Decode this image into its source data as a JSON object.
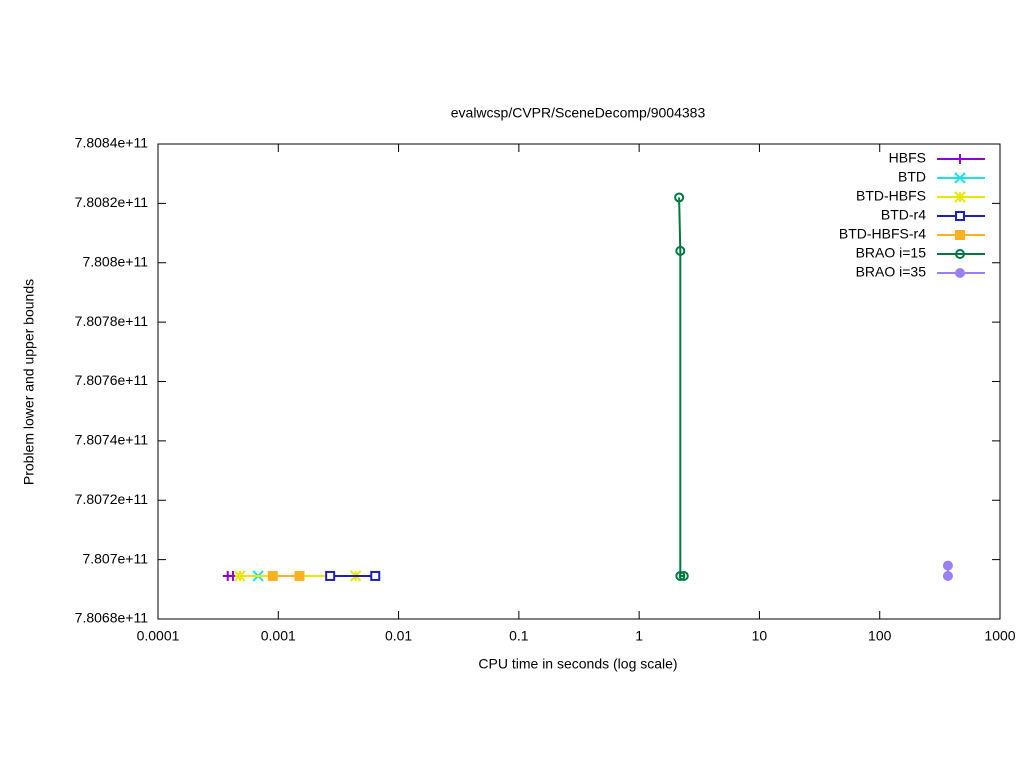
{
  "chart_data": {
    "type": "line",
    "title": "evalwcsp/CVPR/SceneDecomp/9004383",
    "x_label": "CPU time in seconds (log scale)",
    "y_label": "Problem lower and upper bounds",
    "x_log": true,
    "legend": "top-right",
    "xlim": [
      0.0001,
      1000
    ],
    "xticks": [
      0.0001,
      0.001,
      0.01,
      0.1,
      1,
      10,
      100,
      1000
    ],
    "ylim": [
      780680000000,
      780840000000
    ],
    "yticks": [
      {
        "value": 780680000000,
        "label": "7.8068e+11"
      },
      {
        "value": 780700000000,
        "label": "7.807e+11"
      },
      {
        "value": 780720000000,
        "label": "7.8072e+11"
      },
      {
        "value": 780740000000,
        "label": "7.8074e+11"
      },
      {
        "value": 780760000000,
        "label": "7.8076e+11"
      },
      {
        "value": 780780000000,
        "label": "7.8078e+11"
      },
      {
        "value": 780800000000,
        "label": "7.808e+11"
      },
      {
        "value": 780820000000,
        "label": "7.8082e+11"
      },
      {
        "value": 780840000000,
        "label": "7.8084e+11"
      }
    ],
    "series": [
      {
        "name": "HBFS",
        "color": "#9400d3",
        "marker": "plus",
        "x": [
          0.00038,
          0.00042
        ],
        "values": [
          780694500000,
          780694500000
        ]
      },
      {
        "name": "BTD",
        "color": "#20e0e0",
        "marker": "cross",
        "x": [
          0.00068
        ],
        "values": [
          780694500000
        ]
      },
      {
        "name": "BTD-HBFS",
        "color": "#e8e800",
        "marker": "star",
        "x": [
          0.00048,
          0.0044
        ],
        "values": [
          780694500000,
          780694500000
        ]
      },
      {
        "name": "BTD-r4",
        "color": "#2020b0",
        "marker": "square-open",
        "x": [
          0.0027,
          0.0064
        ],
        "values": [
          780694500000,
          780694500000
        ]
      },
      {
        "name": "BTD-HBFS-r4",
        "color": "#ffb020",
        "marker": "square",
        "x": [
          0.0009,
          0.0015
        ],
        "values": [
          780694500000,
          780694500000
        ]
      },
      {
        "name": "BRAO i=15",
        "color": "#007840",
        "marker": "circle-open",
        "x": [
          2.15,
          2.2,
          2.2,
          2.35
        ],
        "values": [
          780822000000,
          780804000000,
          780694500000,
          780694500000
        ]
      },
      {
        "name": "BRAO i=35",
        "color": "#9a80f0",
        "marker": "circle",
        "x": [
          369,
          369
        ],
        "values": [
          780698000000,
          780694500000
        ]
      }
    ]
  }
}
